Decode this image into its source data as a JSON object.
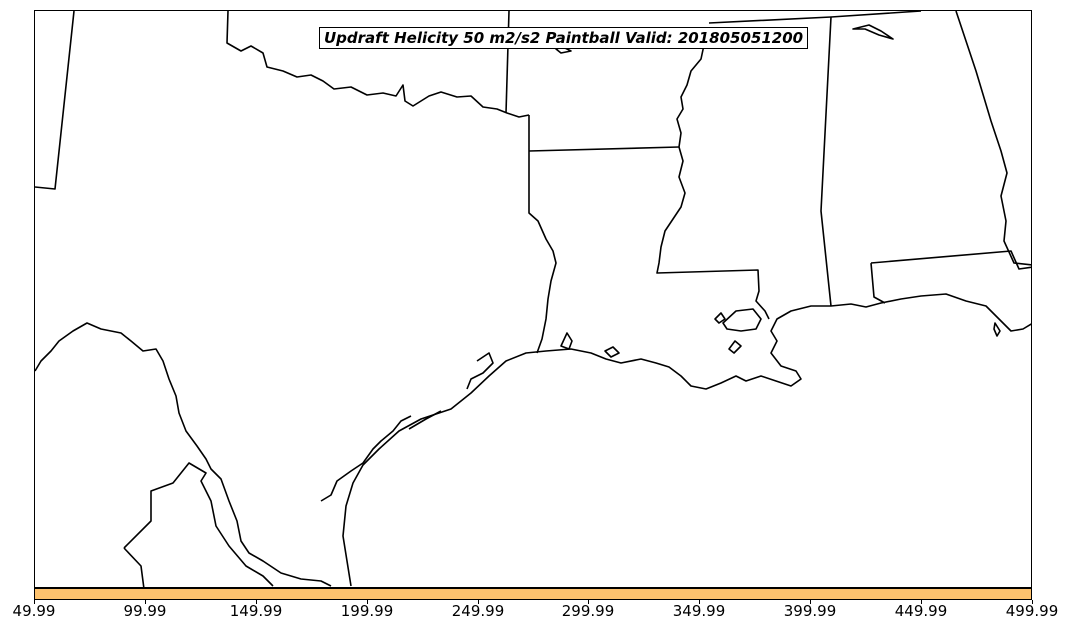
{
  "title": "Updraft Helicity 50 m2/s2 Paintball Valid: 201805051200",
  "colorbar": {
    "color": "#fdc26e",
    "tick_labels": [
      "49.99",
      "99.99",
      "149.99",
      "199.99",
      "249.99",
      "299.99",
      "349.99",
      "399.99",
      "449.99",
      "499.99"
    ]
  },
  "map": {
    "line_color": "#000000",
    "background": "#ffffff"
  }
}
